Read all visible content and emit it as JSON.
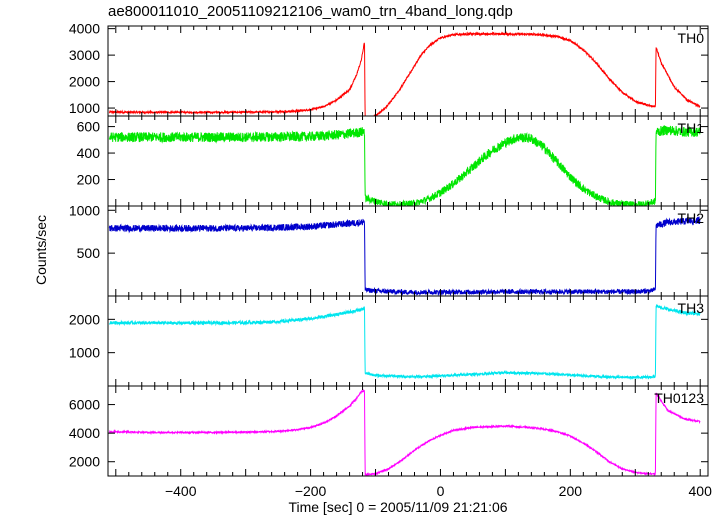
{
  "chart_data": {
    "type": "line",
    "title": "ae800011010_20051109212106_wam0_trn_4band_long.qdp",
    "xlabel": "Time [sec] 0 = 2005/11/09 21:21:06",
    "ylabel": "Counts/sec",
    "xlim": [
      -512,
      412
    ],
    "x_ticks": [
      -400,
      -200,
      0,
      200,
      400
    ],
    "x_tick_labels": [
      "−400",
      "−200",
      "0",
      "200",
      "400"
    ],
    "grid": false,
    "panels": [
      {
        "name": "TH0",
        "color": "#ff0000",
        "ylim": [
          700,
          4100
        ],
        "y_ticks": [
          1000,
          2000,
          3000,
          4000
        ],
        "y_tick_labels": [
          "1000",
          "2000",
          "3000",
          "4000"
        ],
        "x": [
          -510,
          -450,
          -400,
          -350,
          -300,
          -250,
          -220,
          -200,
          -180,
          -160,
          -140,
          -130,
          -122,
          -117,
          -116,
          -105,
          -95,
          -85,
          -75,
          -60,
          -45,
          -30,
          -15,
          0,
          20,
          50,
          100,
          150,
          180,
          200,
          220,
          240,
          260,
          280,
          300,
          320,
          331,
          332,
          340,
          360,
          380,
          400
        ],
        "y": [
          850,
          840,
          840,
          840,
          845,
          860,
          890,
          940,
          1050,
          1300,
          1700,
          2200,
          2800,
          3500,
          550,
          650,
          800,
          1000,
          1300,
          1800,
          2400,
          3000,
          3400,
          3650,
          3780,
          3800,
          3800,
          3780,
          3700,
          3550,
          3200,
          2700,
          2100,
          1600,
          1250,
          1100,
          1050,
          3300,
          2700,
          1800,
          1300,
          1050
        ],
        "noise": 40
      },
      {
        "name": "TH1",
        "color": "#00e600",
        "ylim": [
          0,
          680
        ],
        "y_ticks": [
          200,
          400,
          600
        ],
        "y_tick_labels": [
          "200",
          "400",
          "600"
        ],
        "x": [
          -510,
          -400,
          -300,
          -200,
          -150,
          -120,
          -117,
          -116,
          -100,
          -80,
          -60,
          -40,
          -20,
          0,
          20,
          40,
          60,
          80,
          100,
          120,
          140,
          160,
          180,
          200,
          220,
          240,
          260,
          280,
          300,
          320,
          331,
          332,
          350,
          375,
          400
        ],
        "y": [
          520,
          520,
          520,
          525,
          540,
          560,
          570,
          60,
          35,
          15,
          12,
          20,
          50,
          100,
          170,
          250,
          340,
          420,
          480,
          520,
          510,
          440,
          330,
          220,
          130,
          70,
          30,
          15,
          10,
          20,
          35,
          560,
          575,
          560,
          560
        ],
        "noise": 38
      },
      {
        "name": "TH2",
        "color": "#0000cc",
        "ylim": [
          0,
          1050
        ],
        "y_ticks": [
          500,
          1000
        ],
        "y_tick_labels": [
          "500",
          "1000"
        ],
        "x": [
          -510,
          -400,
          -300,
          -200,
          -150,
          -120,
          -117,
          -116,
          -100,
          -50,
          0,
          100,
          200,
          300,
          325,
          331,
          332,
          350,
          375,
          400
        ],
        "y": [
          790,
          790,
          790,
          810,
          840,
          860,
          880,
          70,
          60,
          45,
          45,
          50,
          50,
          50,
          60,
          80,
          820,
          860,
          870,
          880
        ],
        "noise": 40
      },
      {
        "name": "TH3",
        "color": "#00e5ee",
        "ylim": [
          0,
          2700
        ],
        "y_ticks": [
          1000,
          2000
        ],
        "y_tick_labels": [
          "1000",
          "2000"
        ],
        "x": [
          -510,
          -400,
          -300,
          -250,
          -200,
          -150,
          -120,
          -117,
          -116,
          -100,
          -50,
          0,
          50,
          100,
          150,
          200,
          250,
          300,
          325,
          331,
          332,
          350,
          375,
          400
        ],
        "y": [
          1900,
          1890,
          1900,
          1930,
          2020,
          2180,
          2300,
          2350,
          380,
          320,
          280,
          300,
          350,
          400,
          380,
          330,
          280,
          260,
          270,
          300,
          2400,
          2300,
          2200,
          2150
        ],
        "noise": 50
      },
      {
        "name": "TH0123",
        "color": "#ff00ff",
        "ylim": [
          1000,
          7300
        ],
        "y_ticks": [
          2000,
          4000,
          6000
        ],
        "y_tick_labels": [
          "2000",
          "4000",
          "6000"
        ],
        "x": [
          -510,
          -450,
          -400,
          -350,
          -300,
          -250,
          -220,
          -200,
          -180,
          -160,
          -140,
          -130,
          -122,
          -117,
          -116,
          -100,
          -80,
          -60,
          -40,
          -20,
          0,
          20,
          50,
          100,
          150,
          180,
          200,
          220,
          240,
          260,
          280,
          300,
          320,
          331,
          332,
          350,
          375,
          400
        ],
        "y": [
          4100,
          4050,
          4050,
          4050,
          4070,
          4130,
          4250,
          4400,
          4700,
          5200,
          5900,
          6400,
          6900,
          7000,
          1100,
          1150,
          1500,
          2100,
          2800,
          3400,
          3850,
          4200,
          4400,
          4500,
          4350,
          4100,
          3800,
          3300,
          2700,
          2000,
          1500,
          1250,
          1150,
          1150,
          6800,
          5600,
          5000,
          4800
        ],
        "noise": 55
      }
    ]
  }
}
